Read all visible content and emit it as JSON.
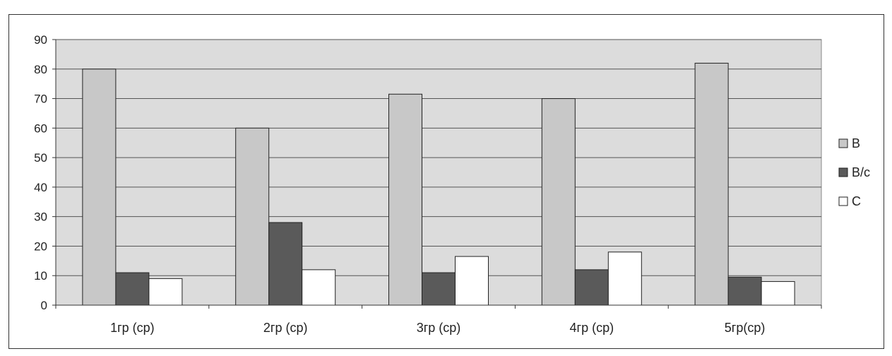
{
  "chart_data": {
    "type": "bar",
    "categories": [
      "1гр (ср)",
      "2гр (ср)",
      "3гр (ср)",
      "4гр (ср)",
      "5гр(ср)"
    ],
    "series": [
      {
        "name": "В",
        "values": [
          80,
          60,
          71.5,
          70,
          82
        ],
        "color": "#c8c8c8"
      },
      {
        "name": "В/с",
        "values": [
          11,
          28,
          11,
          12,
          9.5
        ],
        "color": "#5a5a5a"
      },
      {
        "name": "С",
        "values": [
          9,
          12,
          16.5,
          18,
          8
        ],
        "color": "#ffffff"
      }
    ],
    "ylim": [
      0,
      90
    ],
    "yticks": [
      0,
      10,
      20,
      30,
      40,
      50,
      60,
      70,
      80,
      90
    ],
    "grid": true,
    "legend": "right",
    "plot_background": "#dcdcdc",
    "xlabel": "",
    "ylabel": "",
    "title": ""
  }
}
